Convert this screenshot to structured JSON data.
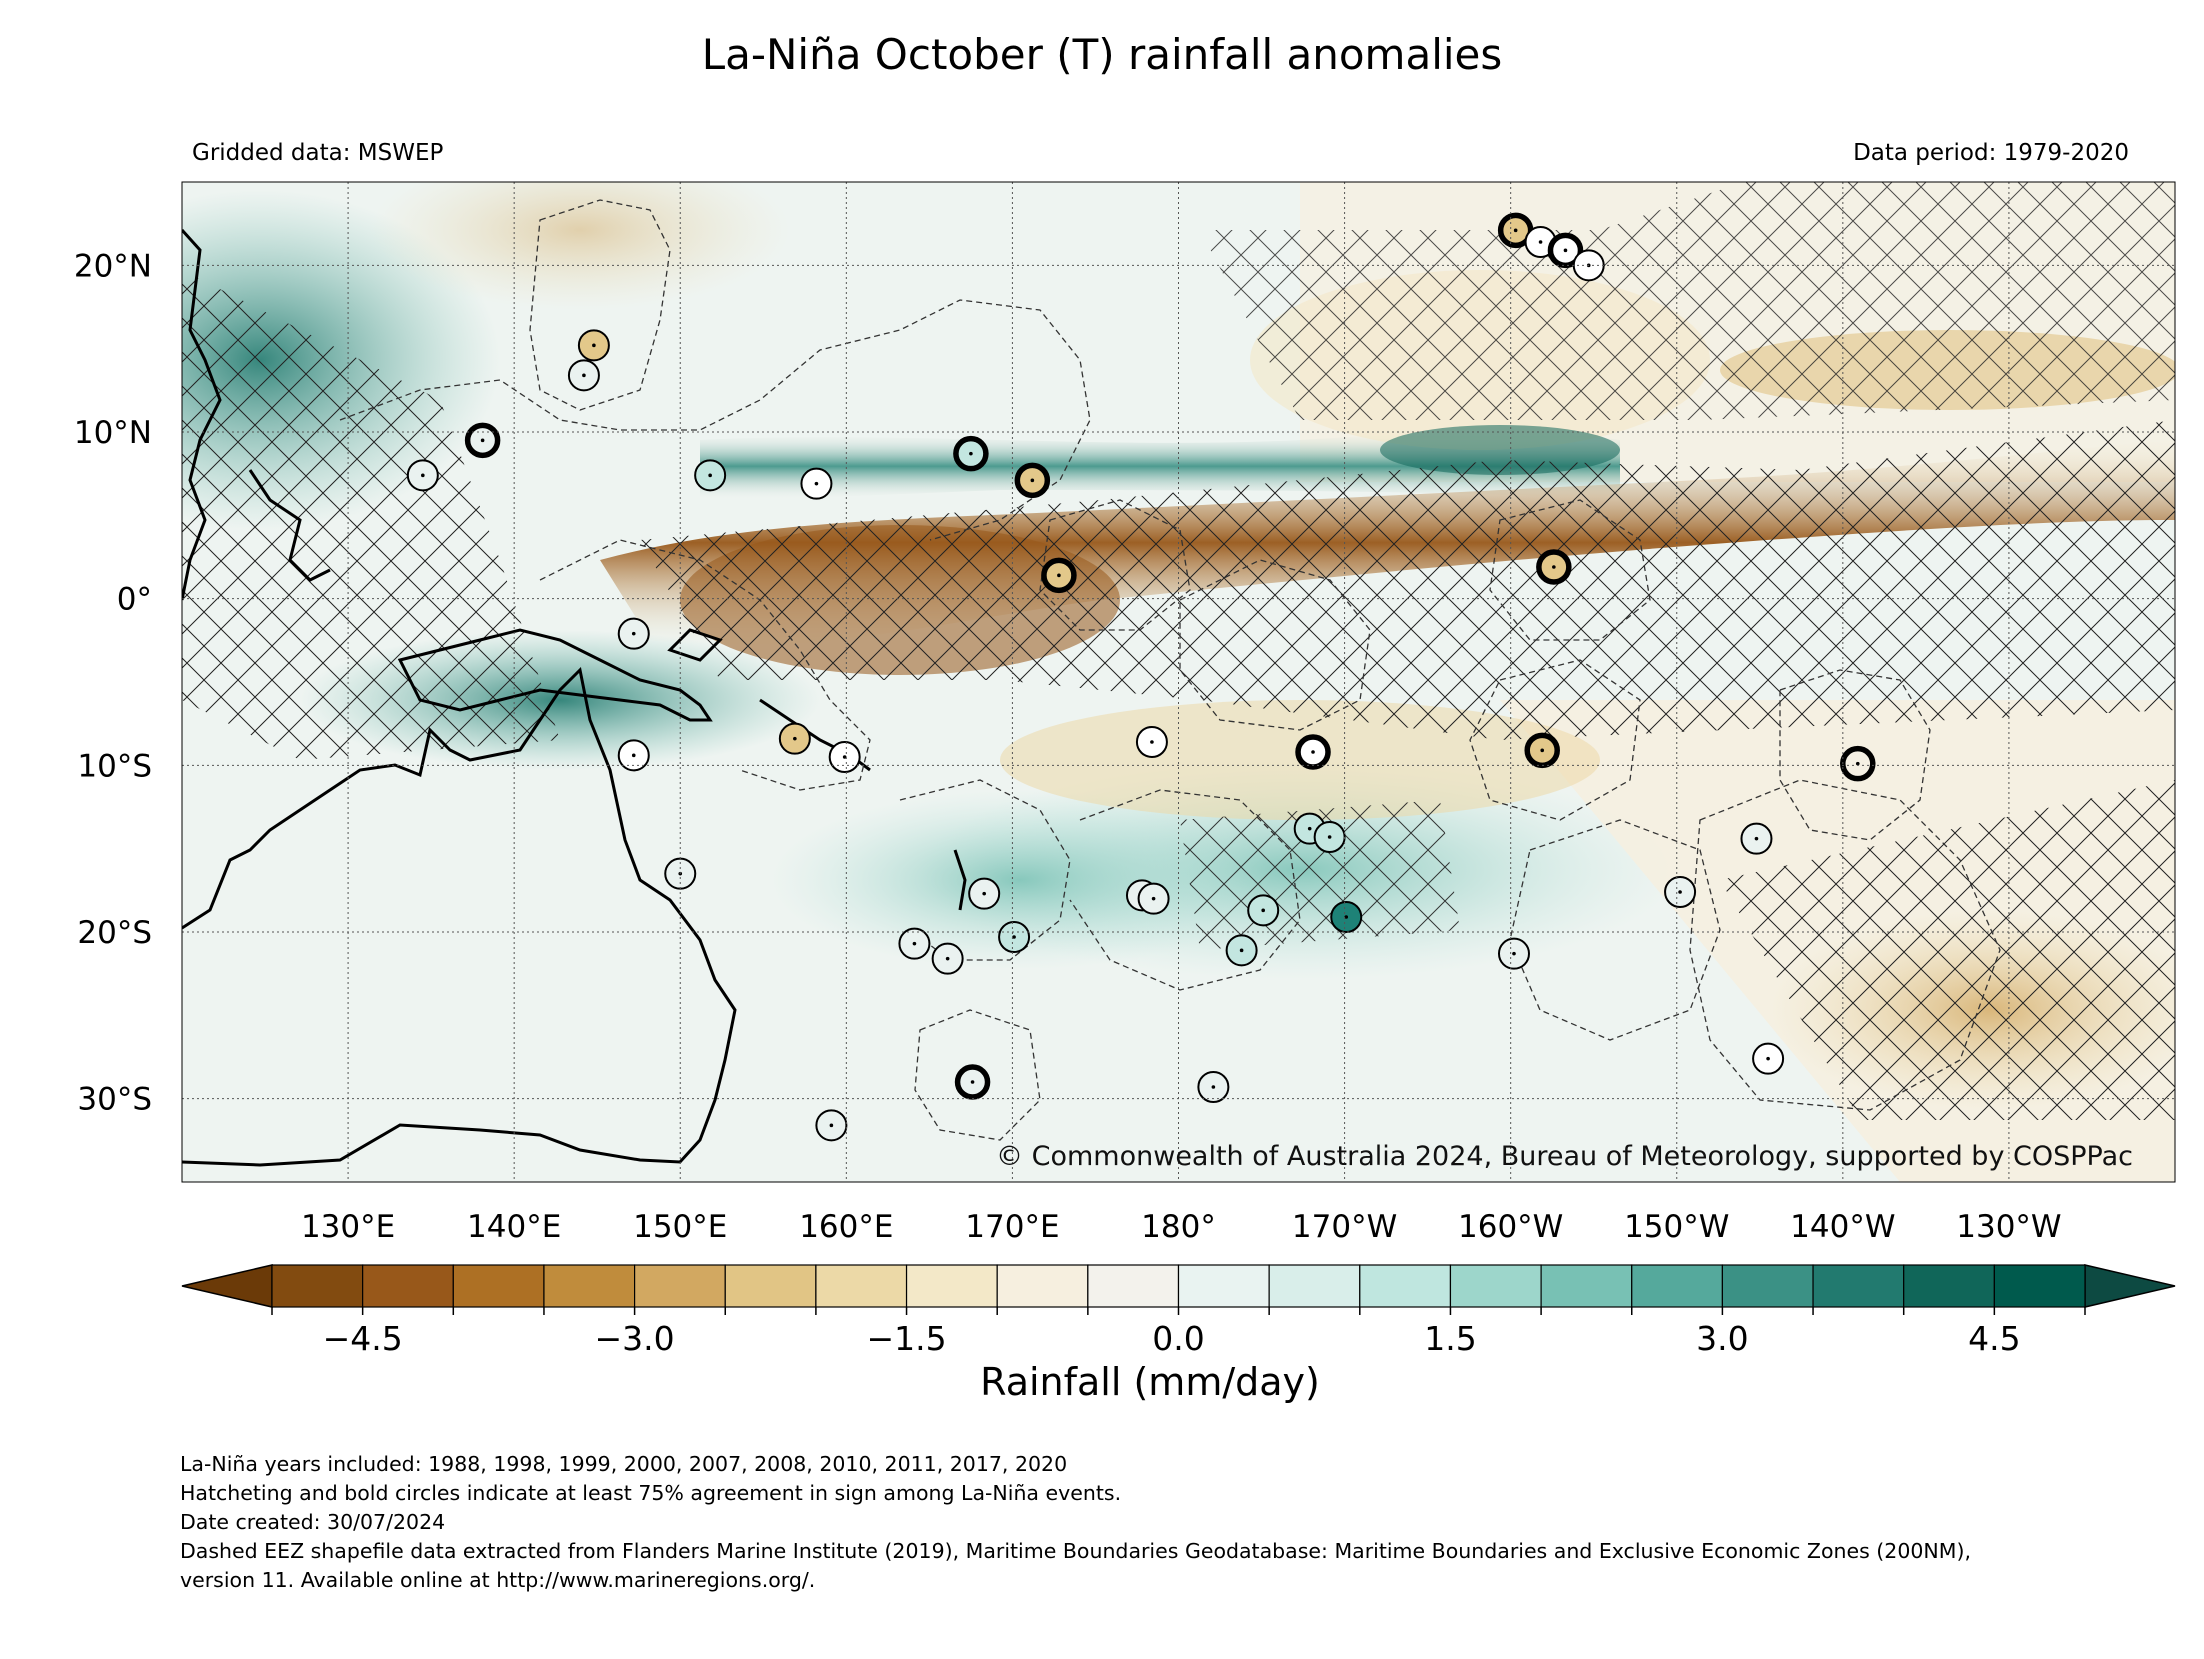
{
  "title": "La-Niña October (T) rainfall anomalies",
  "header": {
    "gridded_data": "Gridded data: MSWEP",
    "data_period": "Data period: 1979-2020"
  },
  "map": {
    "lon_range": [
      120,
      240
    ],
    "lat_range": [
      -35,
      25
    ],
    "lat_ticks": [
      {
        "value": 20,
        "label": "20°N"
      },
      {
        "value": 10,
        "label": "10°N"
      },
      {
        "value": 0,
        "label": "0°"
      },
      {
        "value": -10,
        "label": "10°S"
      },
      {
        "value": -20,
        "label": "20°S"
      },
      {
        "value": -30,
        "label": "30°S"
      }
    ],
    "lon_ticks": [
      {
        "value": 130,
        "label": "130°E"
      },
      {
        "value": 140,
        "label": "140°E"
      },
      {
        "value": 150,
        "label": "150°E"
      },
      {
        "value": 160,
        "label": "160°E"
      },
      {
        "value": 170,
        "label": "170°E"
      },
      {
        "value": 180,
        "label": "180°"
      },
      {
        "value": 190,
        "label": "170°W"
      },
      {
        "value": 200,
        "label": "160°W"
      },
      {
        "value": 210,
        "label": "150°W"
      },
      {
        "value": 220,
        "label": "140°W"
      },
      {
        "value": 230,
        "label": "130°W"
      }
    ],
    "copyright": "© Commonwealth of Australia 2024, Bureau of Meteorology, supported by COSPPac",
    "stations": [
      {
        "lon": 144.8,
        "lat": 15.2,
        "bold": false,
        "color": "#e3c88a"
      },
      {
        "lon": 144.2,
        "lat": 13.4,
        "bold": false,
        "color": "#eaf2f0"
      },
      {
        "lon": 134.5,
        "lat": 7.4,
        "bold": false,
        "color": "#eaf2f0"
      },
      {
        "lon": 138.1,
        "lat": 9.5,
        "bold": true,
        "color": "#eaf2f0"
      },
      {
        "lon": 151.8,
        "lat": 7.4,
        "bold": false,
        "color": "#c3e6e0"
      },
      {
        "lon": 158.2,
        "lat": 6.9,
        "bold": false,
        "color": "#ffffff"
      },
      {
        "lon": 167.5,
        "lat": 8.7,
        "bold": true,
        "color": "#c3e6e0"
      },
      {
        "lon": 171.2,
        "lat": 7.1,
        "bold": true,
        "color": "#e3c88a"
      },
      {
        "lon": 172.8,
        "lat": 1.4,
        "bold": true,
        "color": "#e3c88a"
      },
      {
        "lon": 200.3,
        "lat": 22.1,
        "bold": true,
        "color": "#e3c88a"
      },
      {
        "lon": 201.8,
        "lat": 21.4,
        "bold": false,
        "color": "#ffffff"
      },
      {
        "lon": 203.3,
        "lat": 20.9,
        "bold": true,
        "color": "#ffffff"
      },
      {
        "lon": 204.7,
        "lat": 20.0,
        "bold": false,
        "color": "#ffffff"
      },
      {
        "lon": 202.6,
        "lat": 1.9,
        "bold": true,
        "color": "#e3c88a"
      },
      {
        "lon": 147.2,
        "lat": -2.1,
        "bold": false,
        "color": "#eaf2f0"
      },
      {
        "lon": 147.2,
        "lat": -9.4,
        "bold": false,
        "color": "#ffffff"
      },
      {
        "lon": 156.9,
        "lat": -8.4,
        "bold": false,
        "color": "#e3c88a"
      },
      {
        "lon": 159.9,
        "lat": -9.5,
        "bold": false,
        "color": "#ffffff"
      },
      {
        "lon": 150.0,
        "lat": -16.5,
        "bold": false,
        "color": "#eaf2f0"
      },
      {
        "lon": 178.4,
        "lat": -8.6,
        "bold": false,
        "color": "#ffffff"
      },
      {
        "lon": 188.1,
        "lat": -9.2,
        "bold": true,
        "color": "#ffffff"
      },
      {
        "lon": 201.9,
        "lat": -9.1,
        "bold": true,
        "color": "#e3c88a"
      },
      {
        "lon": 220.9,
        "lat": -9.9,
        "bold": true,
        "color": "#f5f0e4"
      },
      {
        "lon": 187.9,
        "lat": -13.8,
        "bold": false,
        "color": "#c3e6e0"
      },
      {
        "lon": 189.1,
        "lat": -14.3,
        "bold": false,
        "color": "#c3e6e0"
      },
      {
        "lon": 214.8,
        "lat": -14.4,
        "bold": false,
        "color": "#eaf2f0"
      },
      {
        "lon": 210.2,
        "lat": -17.6,
        "bold": false,
        "color": "#eaf2f0"
      },
      {
        "lon": 168.3,
        "lat": -17.7,
        "bold": false,
        "color": "#eaf2f0"
      },
      {
        "lon": 170.1,
        "lat": -20.3,
        "bold": false,
        "color": "#c3e6e0"
      },
      {
        "lon": 164.1,
        "lat": -20.7,
        "bold": false,
        "color": "#eaf2f0"
      },
      {
        "lon": 166.1,
        "lat": -21.6,
        "bold": false,
        "color": "#eaf2f0"
      },
      {
        "lon": 177.8,
        "lat": -17.8,
        "bold": false,
        "color": "#eaf2f0"
      },
      {
        "lon": 178.5,
        "lat": -18.0,
        "bold": false,
        "color": "#eaf2f0"
      },
      {
        "lon": 183.8,
        "lat": -21.1,
        "bold": false,
        "color": "#c3e6e0"
      },
      {
        "lon": 185.1,
        "lat": -18.7,
        "bold": false,
        "color": "#c3e6e0"
      },
      {
        "lon": 190.1,
        "lat": -19.1,
        "bold": false,
        "color": "#1e8277"
      },
      {
        "lon": 200.2,
        "lat": -21.3,
        "bold": false,
        "color": "#eaf2f0"
      },
      {
        "lon": 167.6,
        "lat": -29.0,
        "bold": true,
        "color": "#eaf2f0"
      },
      {
        "lon": 159.1,
        "lat": -31.6,
        "bold": false,
        "color": "#eaf2f0"
      },
      {
        "lon": 182.1,
        "lat": -29.3,
        "bold": false,
        "color": "#eaf2f0"
      },
      {
        "lon": 215.5,
        "lat": -27.6,
        "bold": false,
        "color": "#ffffff"
      }
    ]
  },
  "colorbar": {
    "label": "Rainfall (mm/day)",
    "vmin": -5.0,
    "vmax": 5.0,
    "step": 0.5,
    "tick_labels": [
      "−4.5",
      "−3.0",
      "−1.5",
      "0.0",
      "1.5",
      "3.0",
      "4.5"
    ],
    "tick_values": [
      -4.5,
      -3.0,
      -1.5,
      0.0,
      1.5,
      3.0,
      4.5
    ],
    "under_color": "#6b3a08",
    "over_color": "#0d4a42",
    "colors": [
      "#824b10",
      "#98581a",
      "#ad7024",
      "#c08c3c",
      "#d2a861",
      "#e1c585",
      "#ecd9a7",
      "#f3e8c8",
      "#f6efdf",
      "#f3f2ec",
      "#e9f3f1",
      "#d9eeea",
      "#bfe6df",
      "#9dd6cb",
      "#78c1b4",
      "#55a99c",
      "#3b9185",
      "#227a6f",
      "#106659",
      "#005a4d"
    ]
  },
  "footnotes": [
    "La-Niña years included: 1988, 1998, 1999, 2000, 2007, 2008, 2010, 2011, 2017, 2020",
    "Hatcheting and bold circles indicate at least 75% agreement in sign among La-Niña events.",
    "Date created: 30/07/2024",
    "Dashed EEZ shapefile data extracted from Flanders Marine Institute (2019), Maritime Boundaries Geodatabase: Maritime Boundaries and Exclusive Economic Zones (200NM),",
    "version 11. Available online at http://www.marineregions.org/."
  ]
}
